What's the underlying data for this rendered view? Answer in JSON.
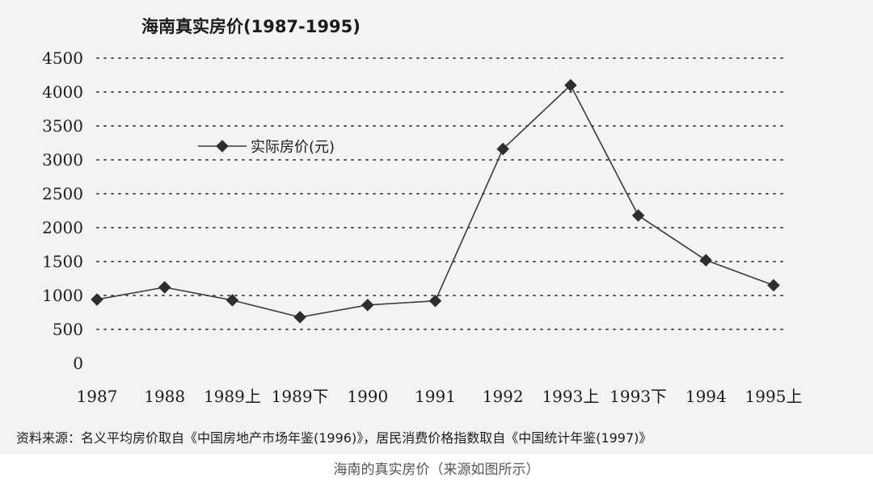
{
  "caption": "海南的真实房价（来源如图所示）",
  "source_note": "资料来源：名义平均房价取自《中国房地产市场年鉴(1996)》，居民消费价格指数取自《中国统计年鉴(1997)》",
  "colors": {
    "line": "#3a3a3a",
    "grid": "#555555",
    "background": "#f3f3f1"
  },
  "chart_data": {
    "type": "line",
    "title": "海南真实房价(1987-1995)",
    "categories": [
      "1987",
      "1988",
      "1989上",
      "1989下",
      "1990",
      "1991",
      "1992",
      "1993上",
      "1993下",
      "1994",
      "1995上"
    ],
    "series": [
      {
        "name": "实际房价(元)",
        "values": [
          940,
          1120,
          930,
          680,
          860,
          920,
          3160,
          4100,
          2180,
          1520,
          1150
        ]
      }
    ],
    "yticks": [
      "0",
      "500",
      "1000",
      "1500",
      "2000",
      "2500",
      "3000",
      "3500",
      "4000",
      "4500"
    ],
    "ylim": [
      0,
      4500
    ],
    "grid": "dotted horizontal",
    "legend": "upper-left, inside"
  }
}
